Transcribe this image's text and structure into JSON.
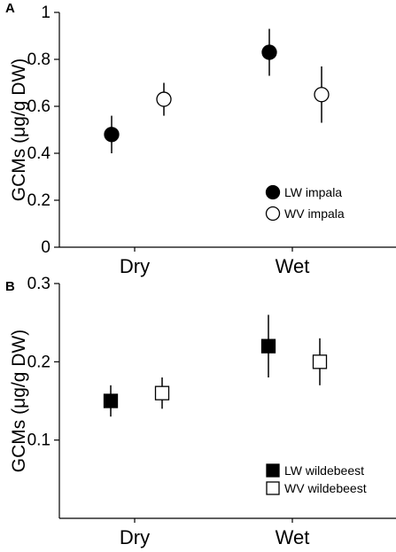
{
  "chart_data": [
    {
      "type": "scatter",
      "panel_label": "A",
      "ylabel": "GCMs (μg/g DW)",
      "xlabel": "",
      "categories": [
        "Dry",
        "Wet"
      ],
      "ylim": [
        0,
        1
      ],
      "yticks": [
        0,
        0.2,
        0.4,
        0.6,
        0.8,
        1
      ],
      "ytick_labels": [
        "0",
        "0.2",
        "0.4",
        "0.6",
        "0.8",
        "1"
      ],
      "legend_position": "bottom-right",
      "series": [
        {
          "name": "LW impala",
          "marker": "circle",
          "fill": "#000000",
          "values": [
            0.48,
            0.83
          ],
          "lower": [
            0.4,
            0.73
          ],
          "upper": [
            0.56,
            0.93
          ]
        },
        {
          "name": "WV impala",
          "marker": "circle",
          "fill": "#ffffff",
          "values": [
            0.63,
            0.65
          ],
          "lower": [
            0.56,
            0.53
          ],
          "upper": [
            0.7,
            0.77
          ]
        }
      ]
    },
    {
      "type": "scatter",
      "panel_label": "B",
      "ylabel": "GCMs (μg/g DW)",
      "xlabel": "",
      "categories": [
        "Dry",
        "Wet"
      ],
      "ylim": [
        0,
        0.3
      ],
      "yticks": [
        0.1,
        0.2,
        0.3
      ],
      "ytick_labels": [
        "0.1",
        "0.2",
        "0.3"
      ],
      "legend_position": "bottom-right",
      "series": [
        {
          "name": "LW wildebeest",
          "marker": "square",
          "fill": "#000000",
          "values": [
            0.15,
            0.22
          ],
          "lower": [
            0.13,
            0.18
          ],
          "upper": [
            0.17,
            0.26
          ]
        },
        {
          "name": "WV wildebeest",
          "marker": "square",
          "fill": "#ffffff",
          "values": [
            0.16,
            0.2
          ],
          "lower": [
            0.14,
            0.17
          ],
          "upper": [
            0.18,
            0.23
          ]
        }
      ]
    }
  ]
}
